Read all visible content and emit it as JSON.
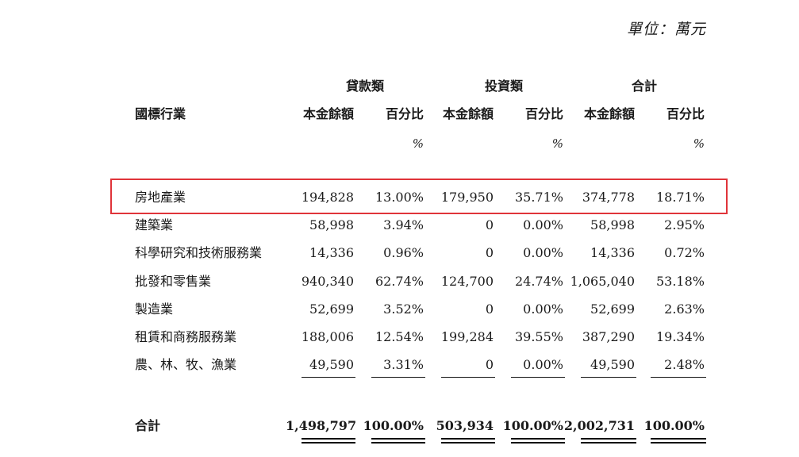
{
  "unit_label": "單位：萬元",
  "headers": {
    "industry": "國標行業",
    "groups": [
      "貸款類",
      "投資類",
      "合計"
    ],
    "subcols": [
      "本金餘額",
      "百分比",
      "本金餘額",
      "百分比",
      "本金餘額",
      "百分比"
    ],
    "pct_unit": "%"
  },
  "rows": [
    {
      "name": "房地產業",
      "values": [
        "194,828",
        "13.00%",
        "179,950",
        "35.71%",
        "374,778",
        "18.71%"
      ]
    },
    {
      "name": "建築業",
      "values": [
        "58,998",
        "3.94%",
        "0",
        "0.00%",
        "58,998",
        "2.95%"
      ]
    },
    {
      "name": "科學研究和技術服務業",
      "values": [
        "14,336",
        "0.96%",
        "0",
        "0.00%",
        "14,336",
        "0.72%"
      ]
    },
    {
      "name": "批發和零售業",
      "values": [
        "940,340",
        "62.74%",
        "124,700",
        "24.74%",
        "1,065,040",
        "53.18%"
      ]
    },
    {
      "name": "製造業",
      "values": [
        "52,699",
        "3.52%",
        "0",
        "0.00%",
        "52,699",
        "2.63%"
      ]
    },
    {
      "name": "租賃和商務服務業",
      "values": [
        "188,006",
        "12.54%",
        "199,284",
        "39.55%",
        "387,290",
        "19.34%"
      ]
    },
    {
      "name": "農、林、牧、漁業",
      "values": [
        "49,590",
        "3.31%",
        "0",
        "0.00%",
        "49,590",
        "2.48%"
      ]
    }
  ],
  "total": {
    "name": "合計",
    "values": [
      "1,498,797",
      "100.00%",
      "503,934",
      "100.00%",
      "2,002,731",
      "100.00%"
    ]
  },
  "colors": {
    "highlight": "#e0343a"
  }
}
